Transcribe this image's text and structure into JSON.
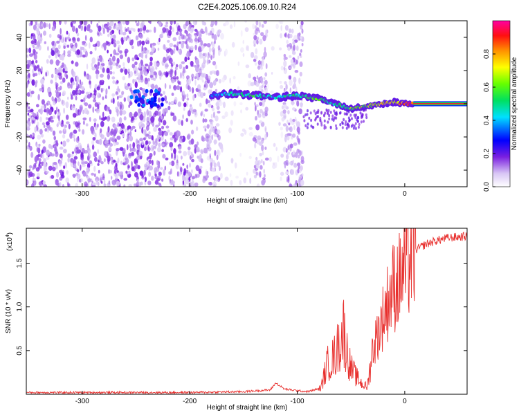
{
  "title": "C2E4.2025.106.09.10.R24",
  "chart_data": [
    {
      "type": "heatmap",
      "name": "spectrogram",
      "xlabel": "Height of straight line (km)",
      "ylabel": "Frequency (Hz)",
      "xlim": [
        -352,
        58
      ],
      "ylim": [
        -50,
        50
      ],
      "xticks": [
        -300,
        -200,
        -100,
        0
      ],
      "xtick_labels": [
        "-300",
        "-200",
        "-100",
        "0"
      ],
      "yticks": [
        -40,
        -20,
        0,
        20,
        40
      ],
      "ytick_labels": [
        "-40",
        "-20",
        "0",
        "20",
        "40"
      ],
      "colorbar": {
        "label": "Normalized spectral amplitude",
        "range": [
          0,
          1
        ],
        "ticks": [
          0.0,
          0.2,
          0.4,
          0.6,
          0.8
        ],
        "tick_labels": [
          "0.0",
          "0.2",
          "0.4",
          "0.6",
          "0.8"
        ]
      },
      "signal_trace": {
        "x": [
          -180,
          -160,
          -140,
          -120,
          -100,
          -80,
          -70,
          -60,
          -50,
          -40,
          -30,
          -20,
          -10,
          0,
          10,
          58
        ],
        "y": [
          5,
          6,
          5,
          4,
          5,
          3,
          1,
          -1,
          -3,
          -2,
          -1,
          0,
          1,
          0,
          0,
          0
        ],
        "amplitude": [
          0.4,
          0.45,
          0.5,
          0.45,
          0.5,
          0.55,
          0.5,
          0.55,
          0.6,
          0.6,
          0.65,
          0.75,
          0.7,
          0.9,
          0.95,
          0.95
        ]
      },
      "noise_gaps_x": [
        [
          -172,
          -140
        ],
        [
          -128,
          -112
        ]
      ]
    },
    {
      "type": "line",
      "name": "snr",
      "xlabel": "Height of straight line (km)",
      "ylabel": "SNR (10 * v/v)",
      "yscale_label": "(x10",
      "yscale_exponent": "4",
      "xlim": [
        -352,
        58
      ],
      "ylim": [
        0,
        1.9
      ],
      "xticks": [
        -300,
        -200,
        -100,
        0
      ],
      "xtick_labels": [
        "-300",
        "-200",
        "-100",
        "0"
      ],
      "yticks": [
        0.5,
        1.0,
        1.5
      ],
      "ytick_labels": [
        "0.5",
        "1.0",
        "1.5"
      ],
      "color": "#e8302e",
      "series": [
        {
          "name": "SNR",
          "x": [
            -352,
            -300,
            -250,
            -200,
            -150,
            -125,
            -120,
            -112,
            -100,
            -90,
            -78,
            -72,
            -66,
            -60,
            -57,
            -54,
            -50,
            -45,
            -40,
            -35,
            -30,
            -25,
            -20,
            -15,
            -10,
            -5,
            0,
            5,
            10,
            20,
            30,
            40,
            50,
            58
          ],
          "y": [
            0.02,
            0.02,
            0.02,
            0.02,
            0.03,
            0.05,
            0.13,
            0.06,
            0.04,
            0.03,
            0.07,
            0.35,
            0.42,
            0.6,
            0.75,
            0.5,
            0.3,
            0.2,
            0.12,
            0.08,
            0.5,
            0.7,
            0.9,
            1.1,
            1.25,
            1.3,
            1.45,
            1.55,
            1.65,
            1.72,
            1.76,
            1.79,
            1.8,
            1.81
          ]
        }
      ]
    }
  ]
}
